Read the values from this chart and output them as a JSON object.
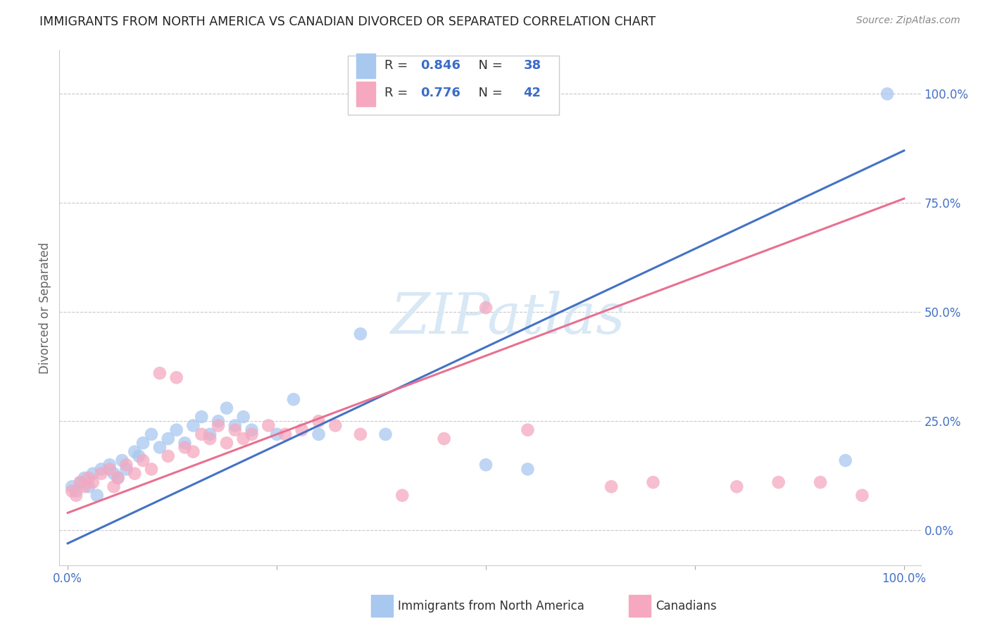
{
  "title": "IMMIGRANTS FROM NORTH AMERICA VS CANADIAN DIVORCED OR SEPARATED CORRELATION CHART",
  "source": "Source: ZipAtlas.com",
  "ylabel": "Divorced or Separated",
  "xlim": [
    -0.01,
    1.02
  ],
  "ylim": [
    -0.08,
    1.1
  ],
  "ytick_positions": [
    0.0,
    0.25,
    0.5,
    0.75,
    1.0
  ],
  "ytick_labels": [
    "0.0%",
    "25.0%",
    "50.0%",
    "75.0%",
    "100.0%"
  ],
  "blue_R": "0.846",
  "blue_N": "38",
  "pink_R": "0.776",
  "pink_N": "42",
  "blue_scatter_color": "#A8C8F0",
  "pink_scatter_color": "#F5A8C0",
  "blue_line_color": "#4472C4",
  "pink_line_color": "#E87090",
  "blue_line_x0": 0.0,
  "blue_line_y0": -0.03,
  "blue_line_x1": 1.0,
  "blue_line_y1": 0.87,
  "pink_line_x0": 0.0,
  "pink_line_y0": 0.04,
  "pink_line_x1": 1.0,
  "pink_line_y1": 0.76,
  "blue_scatter_x": [
    0.005,
    0.01,
    0.015,
    0.02,
    0.025,
    0.03,
    0.035,
    0.04,
    0.05,
    0.055,
    0.06,
    0.065,
    0.07,
    0.08,
    0.085,
    0.09,
    0.1,
    0.11,
    0.12,
    0.13,
    0.14,
    0.15,
    0.16,
    0.17,
    0.18,
    0.19,
    0.2,
    0.21,
    0.22,
    0.25,
    0.27,
    0.3,
    0.35,
    0.38,
    0.5,
    0.55,
    0.93,
    0.98
  ],
  "blue_scatter_y": [
    0.1,
    0.09,
    0.11,
    0.12,
    0.1,
    0.13,
    0.08,
    0.14,
    0.15,
    0.13,
    0.12,
    0.16,
    0.14,
    0.18,
    0.17,
    0.2,
    0.22,
    0.19,
    0.21,
    0.23,
    0.2,
    0.24,
    0.26,
    0.22,
    0.25,
    0.28,
    0.24,
    0.26,
    0.23,
    0.22,
    0.3,
    0.22,
    0.45,
    0.22,
    0.15,
    0.14,
    0.16,
    1.0
  ],
  "pink_scatter_x": [
    0.005,
    0.01,
    0.015,
    0.02,
    0.025,
    0.03,
    0.04,
    0.05,
    0.055,
    0.06,
    0.07,
    0.08,
    0.09,
    0.1,
    0.11,
    0.12,
    0.13,
    0.14,
    0.15,
    0.16,
    0.17,
    0.18,
    0.19,
    0.2,
    0.21,
    0.22,
    0.24,
    0.26,
    0.28,
    0.3,
    0.32,
    0.35,
    0.4,
    0.45,
    0.5,
    0.55,
    0.65,
    0.7,
    0.8,
    0.85,
    0.9,
    0.95
  ],
  "pink_scatter_y": [
    0.09,
    0.08,
    0.11,
    0.1,
    0.12,
    0.11,
    0.13,
    0.14,
    0.1,
    0.12,
    0.15,
    0.13,
    0.16,
    0.14,
    0.36,
    0.17,
    0.35,
    0.19,
    0.18,
    0.22,
    0.21,
    0.24,
    0.2,
    0.23,
    0.21,
    0.22,
    0.24,
    0.22,
    0.23,
    0.25,
    0.24,
    0.22,
    0.08,
    0.21,
    0.51,
    0.23,
    0.1,
    0.11,
    0.1,
    0.11,
    0.11,
    0.08
  ],
  "legend_text_color": "#3B6CC7",
  "legend_label_color": "#222222",
  "source_color": "#888888",
  "title_color": "#222222",
  "watermark_color": "#D8E8F5",
  "grid_color": "#C8C8D0",
  "axis_label_color": "#666666",
  "tick_label_color": "#4472C4"
}
